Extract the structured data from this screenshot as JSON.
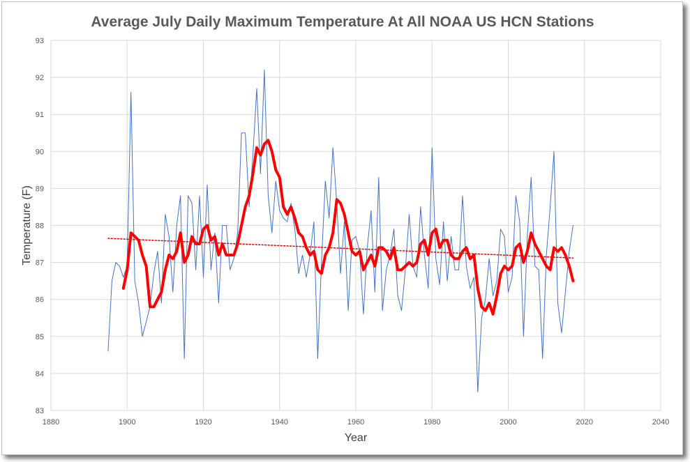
{
  "chart_data": {
    "type": "line",
    "title": "Average July Daily Maximum Temperature At All NOAA US HCN Stations",
    "xlabel": "Year",
    "ylabel": "Temperature (F)",
    "xlim": [
      1880,
      2040
    ],
    "ylim": [
      83,
      93
    ],
    "xticks": [
      1880,
      1900,
      1920,
      1940,
      1960,
      1980,
      2000,
      2020,
      2040
    ],
    "yticks": [
      83,
      84,
      85,
      86,
      87,
      88,
      89,
      90,
      91,
      92,
      93
    ],
    "grid": true,
    "legend": "none",
    "colors": {
      "annual": "#4472c4",
      "moving_average": "#ff0000",
      "trend": "#e00000"
    },
    "series": [
      {
        "key": "annual",
        "x": [
          1895,
          1896,
          1897,
          1898,
          1899,
          1900,
          1901,
          1902,
          1903,
          1904,
          1905,
          1906,
          1907,
          1908,
          1909,
          1910,
          1911,
          1912,
          1913,
          1914,
          1915,
          1916,
          1917,
          1918,
          1919,
          1920,
          1921,
          1922,
          1923,
          1924,
          1925,
          1926,
          1927,
          1928,
          1929,
          1930,
          1931,
          1932,
          1933,
          1934,
          1935,
          1936,
          1937,
          1938,
          1939,
          1940,
          1941,
          1942,
          1943,
          1944,
          1945,
          1946,
          1947,
          1948,
          1949,
          1950,
          1951,
          1952,
          1953,
          1954,
          1955,
          1956,
          1957,
          1958,
          1959,
          1960,
          1961,
          1962,
          1963,
          1964,
          1965,
          1966,
          1967,
          1968,
          1969,
          1970,
          1971,
          1972,
          1973,
          1974,
          1975,
          1976,
          1977,
          1978,
          1979,
          1980,
          1981,
          1982,
          1983,
          1984,
          1985,
          1986,
          1987,
          1988,
          1989,
          1990,
          1991,
          1992,
          1993,
          1994,
          1995,
          1996,
          1997,
          1998,
          1999,
          2000,
          2001,
          2002,
          2003,
          2004,
          2005,
          2006,
          2007,
          2008,
          2009,
          2010,
          2011,
          2012,
          2013,
          2014,
          2015,
          2016,
          2017
        ],
        "values": [
          84.6,
          86.5,
          87.0,
          86.9,
          86.6,
          86.9,
          91.6,
          86.5,
          85.9,
          85.0,
          85.4,
          85.8,
          86.7,
          87.3,
          85.9,
          88.3,
          87.7,
          86.2,
          88.0,
          88.8,
          84.4,
          88.8,
          88.6,
          86.8,
          88.8,
          86.6,
          89.1,
          86.8,
          87.8,
          85.9,
          88.0,
          88.0,
          86.8,
          87.1,
          87.8,
          90.5,
          90.5,
          88.5,
          89.9,
          91.7,
          89.4,
          92.2,
          88.8,
          87.8,
          89.2,
          88.4,
          88.2,
          88.1,
          88.6,
          87.9,
          86.7,
          87.2,
          86.6,
          87.2,
          88.1,
          84.4,
          87.0,
          89.2,
          88.2,
          90.1,
          88.6,
          86.7,
          88.1,
          85.7,
          87.6,
          87.7,
          87.3,
          85.6,
          87.4,
          88.4,
          86.2,
          89.3,
          85.7,
          86.8,
          87.2,
          87.9,
          86.1,
          85.7,
          86.8,
          88.3,
          86.9,
          86.6,
          88.5,
          87.2,
          86.3,
          90.1,
          87.1,
          86.4,
          88.1,
          86.5,
          87.7,
          86.8,
          86.8,
          88.8,
          86.9,
          86.3,
          86.6,
          83.5,
          85.5,
          86.0,
          87.1,
          86.1,
          86.5,
          87.9,
          87.7,
          86.2,
          86.6,
          88.8,
          88.1,
          85.0,
          87.7,
          89.3,
          86.9,
          86.8,
          84.4,
          87.2,
          88.5,
          90.0,
          85.9,
          85.1,
          86.2,
          87.3,
          88.0
        ]
      },
      {
        "key": "moving_average",
        "x": [
          1899,
          1900,
          1901,
          1902,
          1903,
          1904,
          1905,
          1906,
          1907,
          1908,
          1909,
          1910,
          1911,
          1912,
          1913,
          1914,
          1915,
          1916,
          1917,
          1918,
          1919,
          1920,
          1921,
          1922,
          1923,
          1924,
          1925,
          1926,
          1927,
          1928,
          1929,
          1930,
          1931,
          1932,
          1933,
          1934,
          1935,
          1936,
          1937,
          1938,
          1939,
          1940,
          1941,
          1942,
          1943,
          1944,
          1945,
          1946,
          1947,
          1948,
          1949,
          1950,
          1951,
          1952,
          1953,
          1954,
          1955,
          1956,
          1957,
          1958,
          1959,
          1960,
          1961,
          1962,
          1963,
          1964,
          1965,
          1966,
          1967,
          1968,
          1969,
          1970,
          1971,
          1972,
          1973,
          1974,
          1975,
          1976,
          1977,
          1978,
          1979,
          1980,
          1981,
          1982,
          1983,
          1984,
          1985,
          1986,
          1987,
          1988,
          1989,
          1990,
          1991,
          1992,
          1993,
          1994,
          1995,
          1996,
          1997,
          1998,
          1999,
          2000,
          2001,
          2002,
          2003,
          2004,
          2005,
          2006,
          2007,
          2008,
          2009,
          2010,
          2011,
          2012,
          2013,
          2014,
          2015,
          2016,
          2017
        ],
        "values": [
          86.3,
          86.8,
          87.8,
          87.7,
          87.6,
          87.2,
          86.9,
          85.8,
          85.8,
          86.0,
          86.2,
          86.8,
          87.2,
          87.1,
          87.3,
          87.8,
          87.0,
          87.2,
          87.7,
          87.5,
          87.5,
          87.9,
          88.0,
          87.6,
          87.7,
          87.2,
          87.5,
          87.2,
          87.2,
          87.2,
          87.5,
          88.0,
          88.5,
          88.8,
          89.4,
          90.1,
          89.9,
          90.2,
          90.3,
          90.0,
          89.5,
          89.3,
          88.5,
          88.3,
          88.5,
          88.2,
          87.8,
          87.7,
          87.4,
          87.2,
          87.3,
          86.8,
          86.7,
          87.2,
          87.4,
          87.8,
          88.7,
          88.6,
          88.3,
          87.8,
          87.3,
          87.2,
          87.3,
          86.8,
          87.0,
          87.2,
          86.9,
          87.4,
          87.4,
          87.3,
          87.1,
          87.4,
          86.8,
          86.8,
          86.9,
          87.0,
          86.9,
          87.0,
          87.5,
          87.6,
          87.2,
          87.8,
          87.9,
          87.4,
          87.6,
          87.6,
          87.2,
          87.1,
          87.1,
          87.3,
          87.4,
          87.1,
          87.2,
          86.3,
          85.8,
          85.7,
          85.9,
          85.6,
          86.1,
          86.7,
          86.9,
          86.8,
          86.9,
          87.4,
          87.5,
          87.0,
          87.3,
          87.8,
          87.5,
          87.3,
          87.1,
          86.9,
          86.8,
          87.4,
          87.3,
          87.4,
          87.2,
          86.9,
          86.5
        ]
      },
      {
        "key": "trend",
        "x": [
          1895,
          2017
        ],
        "values": [
          87.65,
          87.12
        ]
      }
    ]
  }
}
